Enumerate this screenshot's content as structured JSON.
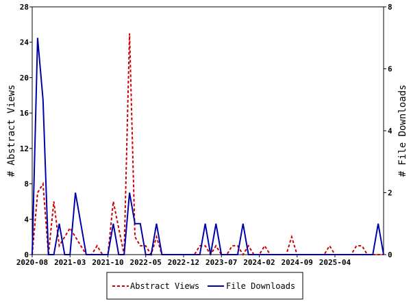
{
  "chart_data": {
    "type": "line",
    "x_axis": {
      "ticks": [
        "2020-08",
        "2021-03",
        "2021-10",
        "2022-05",
        "2022-12",
        "2023-07",
        "2024-02",
        "2024-09",
        "2025-04"
      ],
      "range": [
        "2020-08",
        "2026-01"
      ]
    },
    "y_left": {
      "label": "# Abstract Views",
      "range": [
        0,
        28
      ],
      "ticks": [
        0,
        4,
        8,
        12,
        16,
        20,
        24,
        28
      ]
    },
    "y_right": {
      "label": "# File Downloads",
      "range": [
        0,
        8
      ],
      "ticks": [
        0,
        2,
        4,
        6,
        8
      ]
    },
    "legend_position": "bottom",
    "grid": false,
    "series": [
      {
        "name": "Abstract Views",
        "axis": "left",
        "color": "#cc0000",
        "style": "dashed",
        "x": [
          "2020-08",
          "2020-09",
          "2020-10",
          "2020-11",
          "2020-12",
          "2021-01",
          "2021-02",
          "2021-03",
          "2021-04",
          "2021-05",
          "2021-06",
          "2021-07",
          "2021-08",
          "2021-09",
          "2021-10",
          "2021-11",
          "2021-12",
          "2022-01",
          "2022-02",
          "2022-03",
          "2022-04",
          "2022-05",
          "2022-06",
          "2022-07",
          "2022-08",
          "2022-09",
          "2022-10",
          "2022-11",
          "2022-12",
          "2023-01",
          "2023-02",
          "2023-03",
          "2023-04",
          "2023-05",
          "2023-06",
          "2023-07",
          "2023-08",
          "2023-09",
          "2023-10",
          "2023-11",
          "2023-12",
          "2024-01",
          "2024-02",
          "2024-03",
          "2024-04",
          "2024-05",
          "2024-06",
          "2024-07",
          "2024-08",
          "2024-09",
          "2024-10",
          "2024-11",
          "2024-12",
          "2025-01",
          "2025-02",
          "2025-03",
          "2025-04",
          "2025-05",
          "2025-06",
          "2025-07",
          "2025-08",
          "2025-09",
          "2025-10",
          "2025-11",
          "2025-12",
          "2026-01"
        ],
        "values": [
          0,
          7,
          8,
          0,
          6,
          1,
          2,
          3,
          2,
          1,
          0,
          0,
          1,
          0,
          0,
          6,
          3,
          0,
          25,
          2,
          1,
          1,
          0,
          2,
          0,
          0,
          0,
          0,
          0,
          0,
          0,
          1,
          1,
          0,
          1,
          0,
          0,
          1,
          1,
          0,
          1,
          0,
          0,
          1,
          0,
          0,
          0,
          0,
          2,
          0,
          0,
          0,
          0,
          0,
          0,
          1,
          0,
          0,
          0,
          0,
          1,
          1,
          0,
          0,
          0,
          0
        ]
      },
      {
        "name": "File Downloads",
        "axis": "right",
        "color": "#0000aa",
        "style": "solid",
        "x": [
          "2020-08",
          "2020-09",
          "2020-10",
          "2020-11",
          "2020-12",
          "2021-01",
          "2021-02",
          "2021-03",
          "2021-04",
          "2021-05",
          "2021-06",
          "2021-07",
          "2021-08",
          "2021-09",
          "2021-10",
          "2021-11",
          "2021-12",
          "2022-01",
          "2022-02",
          "2022-03",
          "2022-04",
          "2022-05",
          "2022-06",
          "2022-07",
          "2022-08",
          "2022-09",
          "2022-10",
          "2022-11",
          "2022-12",
          "2023-01",
          "2023-02",
          "2023-03",
          "2023-04",
          "2023-05",
          "2023-06",
          "2023-07",
          "2023-08",
          "2023-09",
          "2023-10",
          "2023-11",
          "2023-12",
          "2024-01",
          "2024-02",
          "2024-03",
          "2024-04",
          "2024-05",
          "2024-06",
          "2024-07",
          "2024-08",
          "2024-09",
          "2024-10",
          "2024-11",
          "2024-12",
          "2025-01",
          "2025-02",
          "2025-03",
          "2025-04",
          "2025-05",
          "2025-06",
          "2025-07",
          "2025-08",
          "2025-09",
          "2025-10",
          "2025-11",
          "2025-12",
          "2026-01"
        ],
        "values": [
          0,
          7,
          5,
          0,
          0,
          1,
          0,
          0,
          2,
          1,
          0,
          0,
          0,
          0,
          0,
          1,
          0,
          0,
          2,
          1,
          1,
          0,
          0,
          1,
          0,
          0,
          0,
          0,
          0,
          0,
          0,
          0,
          1,
          0,
          1,
          0,
          0,
          0,
          0,
          1,
          0,
          0,
          0,
          0,
          0,
          0,
          0,
          0,
          0,
          0,
          0,
          0,
          0,
          0,
          0,
          0,
          0,
          0,
          0,
          0,
          0,
          0,
          0,
          0,
          1,
          0
        ]
      }
    ]
  }
}
